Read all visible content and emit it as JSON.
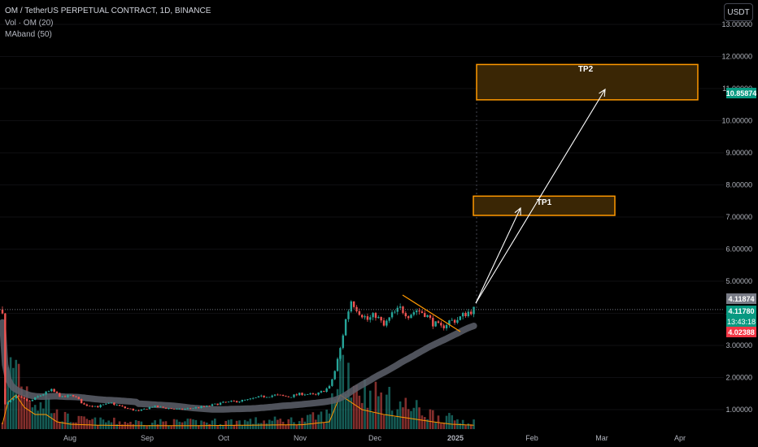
{
  "header": {
    "symbol_line": "OM / TetherUS PERPETUAL CONTRACT, 1D, BINANCE",
    "indicator_volume": "Vol · OM (20)",
    "indicator_maband": "MAband (50)",
    "currency_button": "USDT"
  },
  "price_tags": {
    "target": "10.85874",
    "last_top": "4.11874",
    "current": "4.11780",
    "countdown": "13:43:18",
    "low": "4.02388"
  },
  "colors": {
    "background": "#000000",
    "up": "#26a69a",
    "down": "#ef5350",
    "ma_band": "#5d606b",
    "volume_ma": "#ff9800",
    "target_box_fill": "#3a2605",
    "target_box_border": "#ff9800",
    "axis_text": "#b2b5be"
  },
  "annotations": {
    "tp1_label": "TP1",
    "tp2_label": "TP2",
    "tp1_range": [
      7.05,
      7.65
    ],
    "tp2_range": [
      10.65,
      11.75
    ]
  },
  "chart_data": {
    "type": "candlestick",
    "y_axis_labels": [
      "13.00000",
      "12.00000",
      "11.00000",
      "10.00000",
      "9.00000",
      "8.00000",
      "7.00000",
      "6.00000",
      "5.00000",
      "4.00000",
      "3.00000",
      "2.00000",
      "1.00000"
    ],
    "y_axis_values": [
      13,
      12,
      11,
      10,
      9,
      8,
      7,
      6,
      5,
      4,
      3,
      2,
      1
    ],
    "ylim": [
      0.6,
      13.2
    ],
    "x_axis_labels": [
      "Aug",
      "Sep",
      "Oct",
      "Nov",
      "Dec",
      "2025",
      "Feb",
      "Mar",
      "Apr"
    ],
    "price_path": [
      [
        1,
        1.15
      ],
      [
        5,
        1.4
      ],
      [
        10,
        1.25
      ],
      [
        14,
        1.45
      ],
      [
        18,
        1.6
      ],
      [
        22,
        1.38
      ],
      [
        26,
        1.45
      ],
      [
        30,
        1.15
      ],
      [
        35,
        1.1
      ],
      [
        40,
        1.2
      ],
      [
        45,
        1.05
      ],
      [
        50,
        0.95
      ],
      [
        55,
        1.1
      ],
      [
        60,
        1.05
      ],
      [
        65,
        1.0
      ],
      [
        70,
        1.05
      ],
      [
        75,
        1.1
      ],
      [
        80,
        1.2
      ],
      [
        85,
        1.25
      ],
      [
        90,
        1.3
      ],
      [
        95,
        1.4
      ],
      [
        100,
        1.45
      ],
      [
        105,
        1.4
      ],
      [
        110,
        1.5
      ],
      [
        115,
        1.45
      ],
      [
        120,
        1.7
      ],
      [
        122,
        2.2
      ],
      [
        124,
        2.9
      ],
      [
        126,
        3.8
      ],
      [
        128,
        4.4
      ],
      [
        131,
        4.05
      ],
      [
        134,
        3.8
      ],
      [
        137,
        3.95
      ],
      [
        140,
        3.6
      ],
      [
        143,
        3.95
      ],
      [
        146,
        4.15
      ],
      [
        149,
        3.95
      ],
      [
        152,
        4.1
      ],
      [
        155,
        4.0
      ],
      [
        158,
        3.7
      ],
      [
        161,
        3.55
      ],
      [
        164,
        3.75
      ],
      [
        167,
        3.8
      ],
      [
        170,
        4.0
      ],
      [
        173,
        4.12
      ]
    ],
    "volume_relative": [
      [
        0,
        0.1
      ],
      [
        2,
        0.55
      ],
      [
        5,
        0.7
      ],
      [
        8,
        0.45
      ],
      [
        12,
        0.3
      ],
      [
        16,
        0.3
      ],
      [
        20,
        0.15
      ],
      [
        25,
        0.1
      ],
      [
        35,
        0.08
      ],
      [
        50,
        0.07
      ],
      [
        70,
        0.07
      ],
      [
        90,
        0.08
      ],
      [
        110,
        0.09
      ],
      [
        120,
        0.15
      ],
      [
        124,
        0.7
      ],
      [
        128,
        0.55
      ],
      [
        132,
        0.4
      ],
      [
        136,
        0.35
      ],
      [
        140,
        0.3
      ],
      [
        146,
        0.25
      ],
      [
        152,
        0.2
      ],
      [
        158,
        0.15
      ],
      [
        165,
        0.1
      ],
      [
        173,
        0.08
      ]
    ]
  }
}
